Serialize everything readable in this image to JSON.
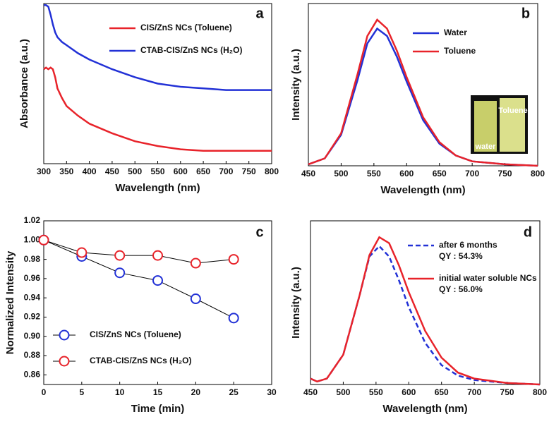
{
  "chart_data": [
    {
      "type": "line",
      "label": "a",
      "xlabel": "Wavelength (nm)",
      "ylabel": "Absorbance (a.u.)",
      "x": [
        300,
        305,
        310,
        315,
        320,
        325,
        330,
        340,
        350,
        375,
        400,
        450,
        500,
        550,
        600,
        650,
        700,
        800
      ],
      "xlim": [
        300,
        800
      ],
      "xticks": [
        300,
        350,
        400,
        450,
        500,
        550,
        600,
        650,
        700,
        750,
        800
      ],
      "ylim": [
        0,
        1
      ],
      "series": [
        {
          "name": "CIS/ZnS NCs (Toluene)",
          "color": "#e8232a",
          "values": [
            0.59,
            0.6,
            0.59,
            0.6,
            0.59,
            0.54,
            0.47,
            0.41,
            0.36,
            0.3,
            0.25,
            0.19,
            0.14,
            0.11,
            0.09,
            0.08,
            0.08,
            0.08
          ]
        },
        {
          "name": "CTAB-CIS/ZnS NCs (H₂O)",
          "color": "#2231d6",
          "values": [
            0.99,
            0.99,
            0.98,
            0.93,
            0.87,
            0.82,
            0.79,
            0.76,
            0.74,
            0.69,
            0.65,
            0.59,
            0.54,
            0.5,
            0.48,
            0.47,
            0.46,
            0.46
          ]
        }
      ]
    },
    {
      "type": "line",
      "label": "b",
      "xlabel": "Wavelength (nm)",
      "ylabel": "Intensity (a.u.)",
      "x": [
        450,
        475,
        500,
        525,
        540,
        555,
        570,
        585,
        600,
        625,
        650,
        675,
        700,
        750,
        800
      ],
      "xlim": [
        450,
        800
      ],
      "xticks": [
        450,
        500,
        550,
        600,
        650,
        700,
        750,
        800
      ],
      "ylim": [
        0,
        1.1
      ],
      "inset_labels": [
        "Toluene",
        "water"
      ],
      "series": [
        {
          "name": "Water",
          "color": "#2231d6",
          "values": [
            0.01,
            0.05,
            0.21,
            0.58,
            0.83,
            0.93,
            0.88,
            0.74,
            0.57,
            0.31,
            0.15,
            0.07,
            0.03,
            0.01,
            0
          ]
        },
        {
          "name": "Toluene",
          "color": "#e8232a",
          "values": [
            0.01,
            0.05,
            0.22,
            0.62,
            0.88,
            0.99,
            0.93,
            0.78,
            0.6,
            0.33,
            0.16,
            0.07,
            0.03,
            0.01,
            0
          ]
        }
      ]
    },
    {
      "type": "line",
      "label": "c",
      "xlabel": "Time (min)",
      "ylabel": "Normalized Intensity",
      "markers": true,
      "x": [
        0,
        5,
        10,
        15,
        20,
        25
      ],
      "xlim": [
        0,
        30
      ],
      "xticks": [
        0,
        5,
        10,
        15,
        20,
        25,
        30
      ],
      "ylim": [
        0.85,
        1.02
      ],
      "yticks": [
        0.86,
        0.88,
        {
          "value": 0.9,
          "label": "0.90"
        },
        0.92,
        0.94,
        0.96,
        0.98,
        {
          "value": 1,
          "label": "1.00"
        },
        1.02
      ],
      "series": [
        {
          "name": "CIS/ZnS NCs (Toluene)",
          "color": "#2231d6",
          "values": [
            1.0,
            0.983,
            0.966,
            0.958,
            0.939,
            0.919
          ]
        },
        {
          "name": "CTAB-CIS/ZnS NCs (H₂O)",
          "color": "#e8232a",
          "values": [
            1.0,
            0.987,
            0.984,
            0.984,
            0.976,
            0.98
          ]
        }
      ]
    },
    {
      "type": "line",
      "label": "d",
      "xlabel": "Wavelength (nm)",
      "ylabel": "Intensity (a.u.)",
      "x": [
        450,
        460,
        475,
        500,
        525,
        540,
        555,
        570,
        585,
        600,
        625,
        650,
        675,
        700,
        750,
        800
      ],
      "xlim": [
        450,
        800
      ],
      "xticks": [
        450,
        500,
        550,
        600,
        650,
        700,
        750,
        800
      ],
      "ylim": [
        0,
        1.1
      ],
      "series": [
        {
          "name": "after 6 months",
          "note": "QY : 54.3%",
          "color": "#2231d6",
          "dash": true,
          "values": [
            0.04,
            0.02,
            0.04,
            0.2,
            0.6,
            0.86,
            0.93,
            0.86,
            0.7,
            0.52,
            0.28,
            0.13,
            0.06,
            0.03,
            0.01,
            0
          ]
        },
        {
          "name": "initial water soluble NCs",
          "note": "QY : 56.0%",
          "color": "#e8232a",
          "values": [
            0.04,
            0.02,
            0.04,
            0.2,
            0.6,
            0.87,
            0.99,
            0.95,
            0.8,
            0.62,
            0.36,
            0.18,
            0.08,
            0.04,
            0.01,
            0
          ]
        }
      ]
    }
  ]
}
